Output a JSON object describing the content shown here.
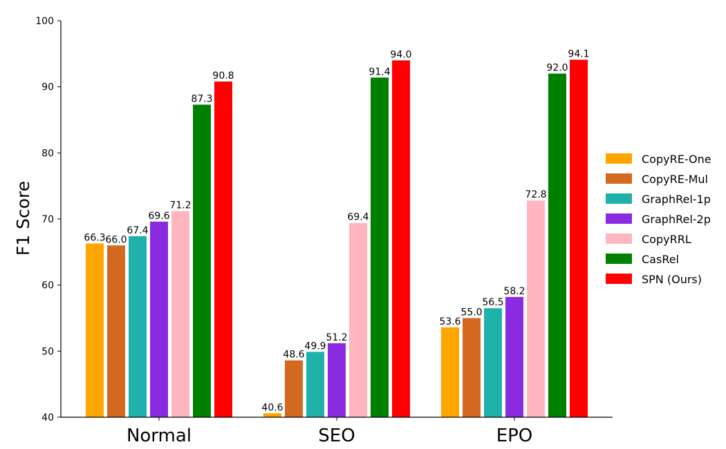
{
  "chart_data": {
    "type": "bar",
    "categories": [
      "Normal",
      "SEO",
      "EPO"
    ],
    "series": [
      {
        "name": "CopyRE-One",
        "color": "#FFA500",
        "values": [
          66.3,
          40.6,
          53.6
        ]
      },
      {
        "name": "CopyRE-Mul",
        "color": "#D2691E",
        "values": [
          66.0,
          48.6,
          55.0
        ]
      },
      {
        "name": "GraphRel-1p",
        "color": "#20B2AA",
        "values": [
          67.4,
          49.9,
          56.5
        ]
      },
      {
        "name": "GraphRel-2p",
        "color": "#8A2BE2",
        "values": [
          69.6,
          51.2,
          58.2
        ]
      },
      {
        "name": "CopyRRL",
        "color": "#FFB6C1",
        "values": [
          71.2,
          69.4,
          72.8
        ]
      },
      {
        "name": "CasRel",
        "color": "#008000",
        "values": [
          87.3,
          91.4,
          92.0
        ]
      },
      {
        "name": "SPN (Ours)",
        "color": "#FF0000",
        "values": [
          90.8,
          94.0,
          94.1
        ]
      }
    ],
    "ylabel": "F1 Score",
    "ylim": [
      40,
      100
    ],
    "yticks": [
      40,
      50,
      60,
      70,
      80,
      90,
      100
    ],
    "legend_position": "right",
    "grid": false
  }
}
